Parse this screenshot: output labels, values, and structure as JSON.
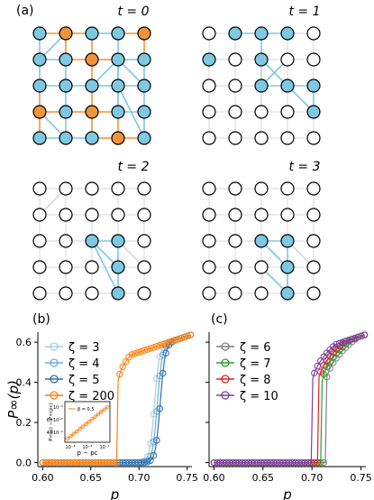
{
  "figure": {
    "panel_a_label": "(a)",
    "panel_b_label": "(b)",
    "panel_c_label": "(c)",
    "time_titles": [
      "t = 0",
      "t = 1",
      "t = 2",
      "t = 3"
    ]
  },
  "colors": {
    "blue_node": "#7ec8e3",
    "orange_node": "#f0943a",
    "blue_edge": "#7ec8e3",
    "orange_edge": "#f0943a",
    "gray_edge": "#d8d8d8"
  },
  "chart_data": [
    {
      "type": "line",
      "panel": "(b)",
      "xlabel": "p",
      "ylabel": "P∞(p)",
      "xlim": [
        0.595,
        0.755
      ],
      "ylim": [
        -0.02,
        0.65
      ],
      "xticks": [
        "0.60",
        "0.65",
        "0.70",
        "0.75"
      ],
      "yticks": [
        "0.0",
        "0.2",
        "0.4",
        "0.6"
      ],
      "legend_position": "upper-left",
      "series": [
        {
          "name": "ζ = 3",
          "color": "#a6cee3",
          "pc": 0.716
        },
        {
          "name": "ζ = 4",
          "color": "#6baed6",
          "pc": 0.719
        },
        {
          "name": "ζ = 5",
          "color": "#2e6fad",
          "pc": 0.722
        },
        {
          "name": "ζ = 200",
          "color": "#ff7f0e",
          "pc": 0.678
        }
      ],
      "inset": {
        "ylabel": "P∞(p) − P∞(pc)",
        "xlabel": "p − pc",
        "series_name": "β = 0.5",
        "yticks": [
          "10⁻¹",
          "6×10⁻²",
          "4×10⁻²"
        ],
        "xticks": [
          "10⁻³",
          "10⁻²",
          "10⁻¹"
        ]
      }
    },
    {
      "type": "line",
      "panel": "(c)",
      "xlabel": "p",
      "xlim": [
        0.595,
        0.755
      ],
      "ylim": [
        -0.02,
        0.65
      ],
      "xticks": [
        "0.60",
        "0.65",
        "0.70",
        "0.75"
      ],
      "legend_position": "upper-left",
      "series": [
        {
          "name": "ζ = 6",
          "color": "#7f7f7f",
          "pc": 0.714
        },
        {
          "name": "ζ = 7",
          "color": "#2ca02c",
          "pc": 0.71
        },
        {
          "name": "ζ = 8",
          "color": "#d62728",
          "pc": 0.706
        },
        {
          "name": "ζ = 10",
          "color": "#7b3fa0",
          "pc": 0.7
        }
      ]
    }
  ]
}
